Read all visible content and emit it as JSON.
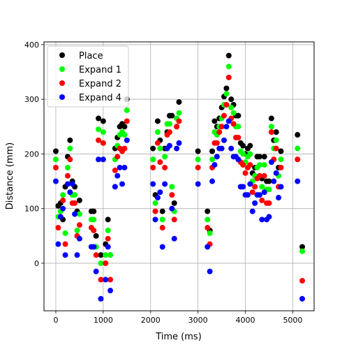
{
  "chart_data": {
    "type": "scatter",
    "title": "",
    "xlabel": "Time (ms)",
    "ylabel": "Distance (mm)",
    "xlim": [
      -250,
      5450
    ],
    "ylim": [
      -87,
      405
    ],
    "xticks": [
      0,
      1000,
      2000,
      3000,
      4000,
      5000
    ],
    "yticks": [
      0,
      100,
      200,
      300,
      400
    ],
    "grid": true,
    "legend_position": "top-left",
    "series": [
      {
        "name": "Place",
        "color": "#000000",
        "points": [
          [
            0,
            205
          ],
          [
            50,
            105
          ],
          [
            100,
            110
          ],
          [
            150,
            80
          ],
          [
            200,
            140
          ],
          [
            250,
            195
          ],
          [
            300,
            225
          ],
          [
            350,
            150
          ],
          [
            400,
            140
          ],
          [
            450,
            95
          ],
          [
            500,
            115
          ],
          [
            750,
            95
          ],
          [
            800,
            95
          ],
          [
            850,
            50
          ],
          [
            900,
            265
          ],
          [
            950,
            15
          ],
          [
            1000,
            260
          ],
          [
            1050,
            35
          ],
          [
            1100,
            80
          ],
          [
            1150,
            15
          ],
          [
            1250,
            210
          ],
          [
            1300,
            230
          ],
          [
            1350,
            250
          ],
          [
            1400,
            255
          ],
          [
            1450,
            250
          ],
          [
            1500,
            300
          ],
          [
            2050,
            210
          ],
          [
            2100,
            125
          ],
          [
            2150,
            260
          ],
          [
            2200,
            225
          ],
          [
            2250,
            95
          ],
          [
            2300,
            210
          ],
          [
            2350,
            240
          ],
          [
            2400,
            270
          ],
          [
            2450,
            270
          ],
          [
            2500,
            110
          ],
          [
            2550,
            250
          ],
          [
            2600,
            295
          ],
          [
            3000,
            205
          ],
          [
            3200,
            95
          ],
          [
            3250,
            60
          ],
          [
            3300,
            205
          ],
          [
            3350,
            260
          ],
          [
            3400,
            250
          ],
          [
            3450,
            265
          ],
          [
            3500,
            285
          ],
          [
            3550,
            305
          ],
          [
            3600,
            320
          ],
          [
            3650,
            380
          ],
          [
            3700,
            300
          ],
          [
            3750,
            290
          ],
          [
            3800,
            270
          ],
          [
            3850,
            270
          ],
          [
            3900,
            220
          ],
          [
            3950,
            215
          ],
          [
            4000,
            200
          ],
          [
            4050,
            210
          ],
          [
            4100,
            215
          ],
          [
            4150,
            165
          ],
          [
            4200,
            175
          ],
          [
            4250,
            195
          ],
          [
            4300,
            195
          ],
          [
            4350,
            155
          ],
          [
            4400,
            195
          ],
          [
            4450,
            150
          ],
          [
            4500,
            150
          ],
          [
            4550,
            265
          ],
          [
            4600,
            225
          ],
          [
            4650,
            240
          ],
          [
            4700,
            175
          ],
          [
            4750,
            205
          ],
          [
            5100,
            235
          ],
          [
            5200,
            30
          ]
        ]
      },
      {
        "name": "Expand 1",
        "color": "#00ff00",
        "points": [
          [
            0,
            190
          ],
          [
            50,
            85
          ],
          [
            100,
            95
          ],
          [
            150,
            125
          ],
          [
            200,
            55
          ],
          [
            250,
            175
          ],
          [
            300,
            210
          ],
          [
            350,
            125
          ],
          [
            400,
            125
          ],
          [
            450,
            60
          ],
          [
            500,
            90
          ],
          [
            750,
            80
          ],
          [
            800,
            80
          ],
          [
            850,
            30
          ],
          [
            900,
            245
          ],
          [
            950,
            0
          ],
          [
            1000,
            240
          ],
          [
            1050,
            15
          ],
          [
            1100,
            60
          ],
          [
            1150,
            15
          ],
          [
            1250,
            190
          ],
          [
            1300,
            215
          ],
          [
            1350,
            235
          ],
          [
            1400,
            240
          ],
          [
            1450,
            235
          ],
          [
            1500,
            280
          ],
          [
            2050,
            190
          ],
          [
            2100,
            110
          ],
          [
            2150,
            240
          ],
          [
            2200,
            210
          ],
          [
            2250,
            80
          ],
          [
            2300,
            195
          ],
          [
            2350,
            255
          ],
          [
            2400,
            255
          ],
          [
            2450,
            140
          ],
          [
            2500,
            95
          ],
          [
            2550,
            265
          ],
          [
            2600,
            275
          ],
          [
            3000,
            190
          ],
          [
            3200,
            80
          ],
          [
            3250,
            55
          ],
          [
            3300,
            190
          ],
          [
            3350,
            240
          ],
          [
            3400,
            235
          ],
          [
            3450,
            250
          ],
          [
            3500,
            265
          ],
          [
            3550,
            290
          ],
          [
            3600,
            310
          ],
          [
            3650,
            360
          ],
          [
            3700,
            285
          ],
          [
            3750,
            275
          ],
          [
            3800,
            250
          ],
          [
            3850,
            250
          ],
          [
            3900,
            205
          ],
          [
            3950,
            200
          ],
          [
            4000,
            185
          ],
          [
            4050,
            195
          ],
          [
            4100,
            200
          ],
          [
            4150,
            150
          ],
          [
            4200,
            160
          ],
          [
            4250,
            175
          ],
          [
            4300,
            180
          ],
          [
            4350,
            140
          ],
          [
            4400,
            180
          ],
          [
            4450,
            135
          ],
          [
            4500,
            135
          ],
          [
            4550,
            250
          ],
          [
            4600,
            210
          ],
          [
            4650,
            225
          ],
          [
            4700,
            160
          ],
          [
            4750,
            190
          ],
          [
            5100,
            210
          ],
          [
            5200,
            22
          ]
        ]
      },
      {
        "name": "Expand 2",
        "color": "#ff0000",
        "points": [
          [
            0,
            175
          ],
          [
            50,
            65
          ],
          [
            100,
            85
          ],
          [
            150,
            115
          ],
          [
            200,
            35
          ],
          [
            250,
            160
          ],
          [
            300,
            190
          ],
          [
            350,
            110
          ],
          [
            400,
            110
          ],
          [
            450,
            50
          ],
          [
            500,
            70
          ],
          [
            750,
            65
          ],
          [
            800,
            60
          ],
          [
            850,
            15
          ],
          [
            900,
            225
          ],
          [
            950,
            -30
          ],
          [
            1000,
            220
          ],
          [
            1050,
            0
          ],
          [
            1100,
            45
          ],
          [
            1150,
            -30
          ],
          [
            1250,
            170
          ],
          [
            1300,
            195
          ],
          [
            1350,
            210
          ],
          [
            1400,
            205
          ],
          [
            1450,
            210
          ],
          [
            1500,
            260
          ],
          [
            2050,
            175
          ],
          [
            2100,
            95
          ],
          [
            2150,
            220
          ],
          [
            2200,
            185
          ],
          [
            2250,
            65
          ],
          [
            2300,
            175
          ],
          [
            2350,
            235
          ],
          [
            2400,
            240
          ],
          [
            2450,
            125
          ],
          [
            2500,
            80
          ],
          [
            2550,
            250
          ],
          [
            2600,
            260
          ],
          [
            3000,
            175
          ],
          [
            3200,
            65
          ],
          [
            3250,
            35
          ],
          [
            3300,
            175
          ],
          [
            3350,
            220
          ],
          [
            3400,
            220
          ],
          [
            3450,
            240
          ],
          [
            3500,
            250
          ],
          [
            3550,
            270
          ],
          [
            3600,
            290
          ],
          [
            3650,
            340
          ],
          [
            3700,
            265
          ],
          [
            3750,
            255
          ],
          [
            3800,
            230
          ],
          [
            3850,
            230
          ],
          [
            3900,
            185
          ],
          [
            3950,
            180
          ],
          [
            4000,
            165
          ],
          [
            4050,
            175
          ],
          [
            4100,
            180
          ],
          [
            4150,
            130
          ],
          [
            4200,
            140
          ],
          [
            4250,
            155
          ],
          [
            4300,
            160
          ],
          [
            4350,
            115
          ],
          [
            4400,
            160
          ],
          [
            4450,
            110
          ],
          [
            4500,
            110
          ],
          [
            4550,
            240
          ],
          [
            4600,
            190
          ],
          [
            4650,
            210
          ],
          [
            4700,
            140
          ],
          [
            4750,
            175
          ],
          [
            5100,
            190
          ],
          [
            5200,
            -32
          ]
        ]
      },
      {
        "name": "Expand 4",
        "color": "#0000ff",
        "points": [
          [
            0,
            150
          ],
          [
            50,
            35
          ],
          [
            100,
            85
          ],
          [
            150,
            100
          ],
          [
            200,
            15
          ],
          [
            250,
            145
          ],
          [
            300,
            130
          ],
          [
            350,
            145
          ],
          [
            400,
            90
          ],
          [
            450,
            15
          ],
          [
            500,
            45
          ],
          [
            750,
            30
          ],
          [
            800,
            30
          ],
          [
            850,
            -15
          ],
          [
            900,
            190
          ],
          [
            950,
            -65
          ],
          [
            1000,
            190
          ],
          [
            1050,
            -30
          ],
          [
            1100,
            30
          ],
          [
            1150,
            -50
          ],
          [
            1250,
            140
          ],
          [
            1300,
            160
          ],
          [
            1350,
            175
          ],
          [
            1400,
            145
          ],
          [
            1450,
            175
          ],
          [
            1500,
            225
          ],
          [
            2050,
            145
          ],
          [
            2100,
            80
          ],
          [
            2150,
            120
          ],
          [
            2200,
            130
          ],
          [
            2250,
            30
          ],
          [
            2300,
            145
          ],
          [
            2350,
            210
          ],
          [
            2400,
            215
          ],
          [
            2450,
            100
          ],
          [
            2500,
            45
          ],
          [
            2550,
            210
          ],
          [
            2600,
            220
          ],
          [
            3000,
            145
          ],
          [
            3200,
            30
          ],
          [
            3250,
            -15
          ],
          [
            3300,
            150
          ],
          [
            3350,
            180
          ],
          [
            3400,
            195
          ],
          [
            3450,
            210
          ],
          [
            3500,
            210
          ],
          [
            3550,
            225
          ],
          [
            3600,
            250
          ],
          [
            3650,
            260
          ],
          [
            3700,
            210
          ],
          [
            3750,
            195
          ],
          [
            3800,
            195
          ],
          [
            3850,
            190
          ],
          [
            3900,
            140
          ],
          [
            3950,
            140
          ],
          [
            4000,
            125
          ],
          [
            4050,
            125
          ],
          [
            4100,
            145
          ],
          [
            4150,
            95
          ],
          [
            4200,
            110
          ],
          [
            4250,
            125
          ],
          [
            4300,
            125
          ],
          [
            4350,
            80
          ],
          [
            4400,
            130
          ],
          [
            4450,
            80
          ],
          [
            4500,
            85
          ],
          [
            4550,
            185
          ],
          [
            4600,
            150
          ],
          [
            4650,
            165
          ],
          [
            4700,
            120
          ],
          [
            4750,
            140
          ],
          [
            5100,
            150
          ],
          [
            5200,
            -65
          ]
        ]
      }
    ]
  }
}
